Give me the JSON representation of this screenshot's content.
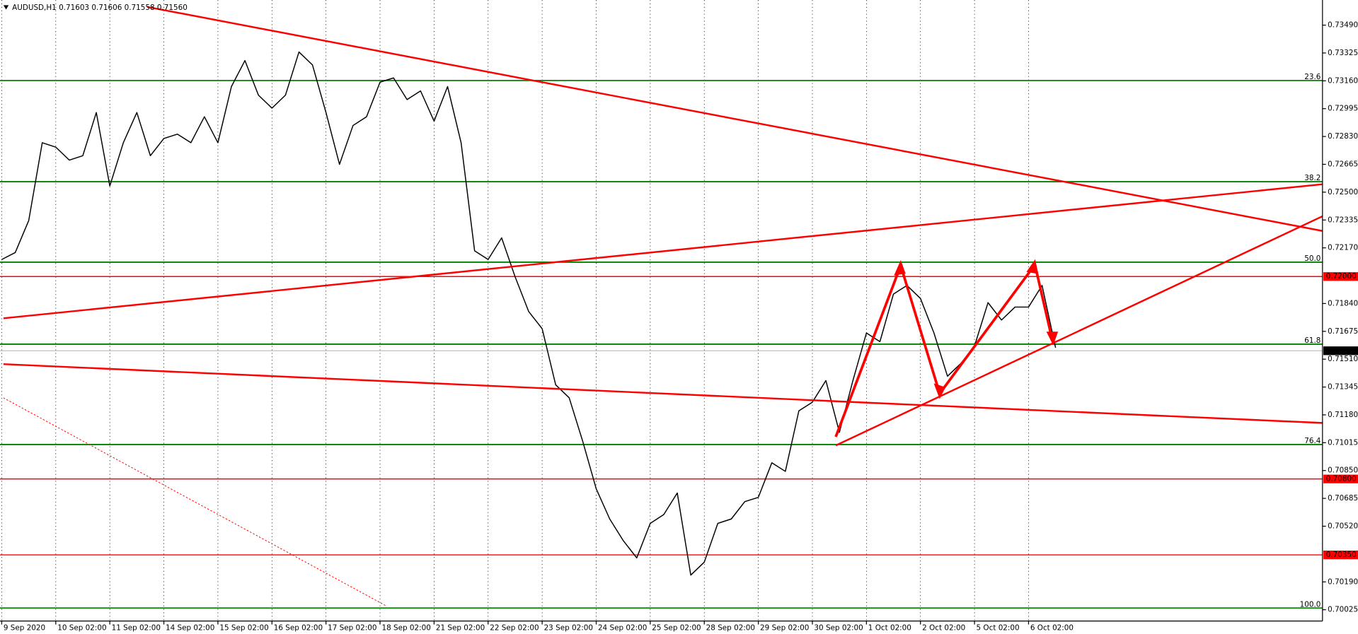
{
  "chart_data": {
    "type": "line",
    "title": "AUDUSD,H1  0.71603 0.71606 0.71558 0.71560",
    "categories": [
      "9 Sep 2020",
      null,
      null,
      null,
      "10 Sep 02:00",
      null,
      null,
      null,
      "11 Sep 02:00",
      null,
      null,
      null,
      "14 Sep 02:00",
      null,
      null,
      null,
      "15 Sep 02:00",
      null,
      null,
      null,
      "16 Sep 02:00",
      null,
      null,
      null,
      "17 Sep 02:00",
      null,
      null,
      null,
      "18 Sep 02:00",
      null,
      null,
      null,
      "21 Sep 02:00",
      null,
      null,
      null,
      "22 Sep 02:00",
      null,
      null,
      null,
      "23 Sep 02:00",
      null,
      null,
      null,
      "24 Sep 02:00",
      null,
      null,
      null,
      "25 Sep 02:00",
      null,
      null,
      null,
      "28 Sep 02:00",
      null,
      null,
      null,
      "29 Sep 02:00",
      null,
      null,
      null,
      "30 Sep 02:00",
      null,
      null,
      null,
      "1 Oct 02:00",
      null,
      null,
      null,
      "2 Oct 02:00",
      null,
      null,
      null,
      "5 Oct 02:00",
      null,
      null,
      null,
      "6 Oct 02:00",
      null,
      null
    ],
    "values": [
      0.72101,
      0.72142,
      0.72332,
      0.72793,
      0.72767,
      0.7269,
      0.72716,
      0.72972,
      0.72537,
      0.72793,
      0.72972,
      0.72716,
      0.72818,
      0.72844,
      0.72793,
      0.72947,
      0.72793,
      0.73126,
      0.7328,
      0.73075,
      0.72998,
      0.73075,
      0.73331,
      0.73254,
      0.72972,
      0.72665,
      0.72895,
      0.72947,
      0.73152,
      0.73177,
      0.73049,
      0.731,
      0.72921,
      0.73126,
      0.72793,
      0.72152,
      0.72101,
      0.72229,
      0.71998,
      0.71793,
      0.71691,
      0.71358,
      0.71281,
      0.71024,
      0.70742,
      0.70563,
      0.70435,
      0.70332,
      0.70537,
      0.70589,
      0.70717,
      0.7023,
      0.70307,
      0.70537,
      0.70563,
      0.70666,
      0.70691,
      0.70896,
      0.70845,
      0.71204,
      0.71255,
      0.71383,
      0.71076,
      0.71383,
      0.71665,
      0.71614,
      0.71896,
      0.71947,
      0.7187,
      0.71665,
      0.71409,
      0.71486,
      0.71588,
      0.71845,
      0.71742,
      0.71819,
      0.71819,
      0.71947,
      0.71578
    ],
    "color": "#000000",
    "ylim": [
      0.69958,
      0.73639
    ],
    "yticks": [
      {
        "value": 0.7349,
        "label": "0.73490"
      },
      0.73325,
      {
        "value": 0.7316,
        "label": "0.73160"
      },
      0.72995,
      {
        "value": 0.7283,
        "label": "0.72830"
      },
      0.72665,
      {
        "value": 0.725,
        "label": "0.72500"
      },
      0.72335,
      {
        "value": 0.7217,
        "label": "0.72170"
      },
      {
        "value": 0.7184,
        "label": "0.71840"
      },
      0.71675,
      {
        "value": 0.7151,
        "label": "0.71510"
      },
      0.71345,
      {
        "value": 0.7118,
        "label": "0.71180"
      },
      0.71015,
      {
        "value": 0.7085,
        "label": "0.70850"
      },
      0.70685,
      {
        "value": 0.7052,
        "label": "0.70520"
      },
      {
        "value": 0.7019,
        "label": "0.70190"
      },
      0.70025
    ],
    "grid": true,
    "fib_levels": [
      {
        "name": "23.6",
        "value": 0.73162
      },
      {
        "name": "38.2",
        "value": 0.72562
      },
      {
        "name": "50.0",
        "value": 0.72085
      },
      {
        "name": "61.8",
        "value": 0.71599
      },
      {
        "name": "76.4",
        "value": 0.71004
      },
      {
        "name": "100.0",
        "value": 0.70035
      }
    ],
    "fib_color": "#008000",
    "price_lines": [
      {
        "value": 0.72,
        "label": "0.72000"
      },
      {
        "value": 0.708,
        "label": "0.70800"
      },
      {
        "value": 0.7035,
        "label": "0.70350"
      }
    ],
    "price_line_color": "#ff0000",
    "last_price": {
      "value": 0.7156,
      "label": "0.71560"
    }
  }
}
